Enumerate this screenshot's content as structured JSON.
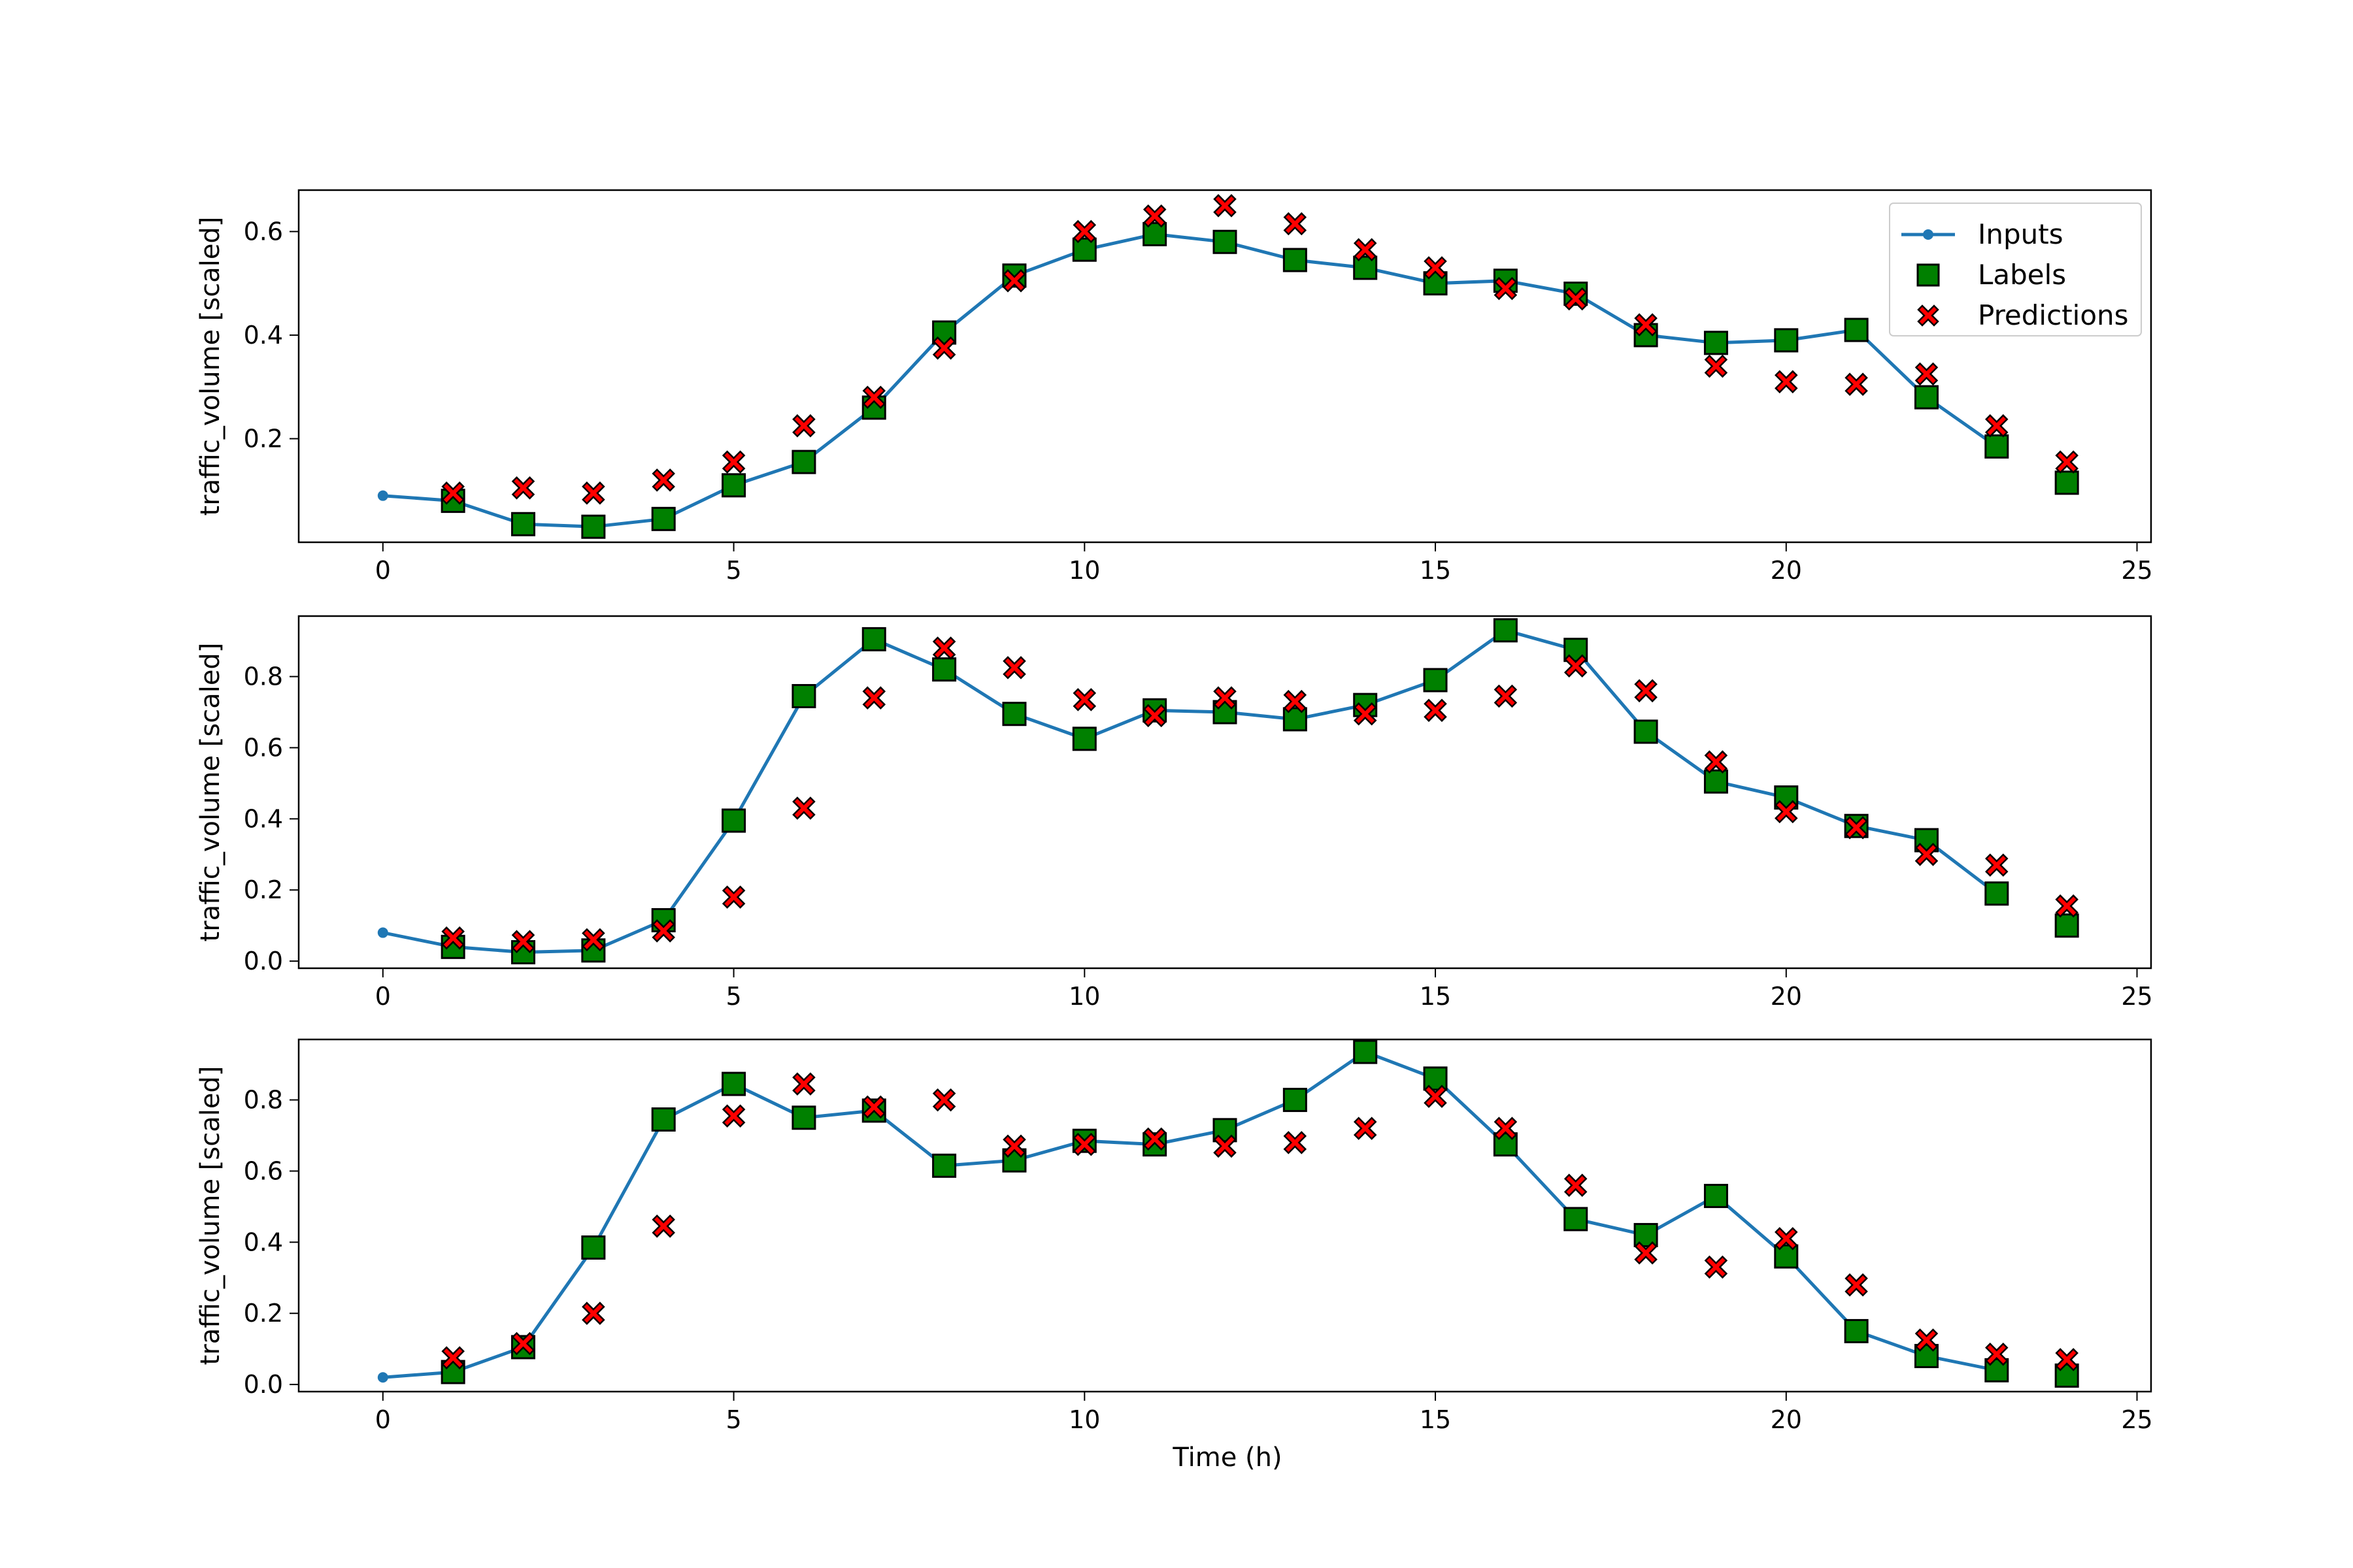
{
  "figure": {
    "xlabel": "Time (h)",
    "ylabel": "traffic_volume [scaled]"
  },
  "legend": {
    "placement": "top-right",
    "entries": [
      {
        "key": "inputs",
        "label": "Inputs"
      },
      {
        "key": "labels",
        "label": "Labels"
      },
      {
        "key": "predictions",
        "label": "Predictions"
      }
    ]
  },
  "colors": {
    "inputs": "#1f77b4",
    "labels": "#008000",
    "predictions": "#ff0000",
    "edge": "#000000"
  },
  "chart_data": [
    {
      "type": "line",
      "xlabel": "",
      "ylabel": "traffic_volume [scaled]",
      "xlim": [
        -1.2,
        25.2
      ],
      "ylim": [
        0.0,
        0.68
      ],
      "xticks": [
        0,
        5,
        10,
        15,
        20,
        25
      ],
      "yticks": [
        0.2,
        0.4,
        0.6
      ],
      "tick_decimals": 1,
      "legend": true,
      "series": [
        {
          "name": "Inputs",
          "kind": "line",
          "x": [
            0,
            1,
            2,
            3,
            4,
            5,
            6,
            7,
            8,
            9,
            10,
            11,
            12,
            13,
            14,
            15,
            16,
            17,
            18,
            19,
            20,
            21,
            22,
            23
          ],
          "y": [
            0.09,
            0.08,
            0.035,
            0.03,
            0.045,
            0.11,
            0.155,
            0.26,
            0.405,
            0.515,
            0.565,
            0.595,
            0.58,
            0.545,
            0.53,
            0.5,
            0.505,
            0.48,
            0.4,
            0.385,
            0.39,
            0.41,
            0.28,
            0.185
          ]
        },
        {
          "name": "Labels",
          "kind": "square",
          "x": [
            1,
            2,
            3,
            4,
            5,
            6,
            7,
            8,
            9,
            10,
            11,
            12,
            13,
            14,
            15,
            16,
            17,
            18,
            19,
            20,
            21,
            22,
            23,
            24
          ],
          "y": [
            0.08,
            0.035,
            0.03,
            0.045,
            0.11,
            0.155,
            0.26,
            0.405,
            0.515,
            0.565,
            0.595,
            0.58,
            0.545,
            0.53,
            0.5,
            0.505,
            0.48,
            0.4,
            0.385,
            0.39,
            0.41,
            0.28,
            0.185,
            0.115
          ]
        },
        {
          "name": "Predictions",
          "kind": "cross",
          "x": [
            1,
            2,
            3,
            4,
            5,
            6,
            7,
            8,
            9,
            10,
            11,
            12,
            13,
            14,
            15,
            16,
            17,
            18,
            19,
            20,
            21,
            22,
            23,
            24
          ],
          "y": [
            0.095,
            0.105,
            0.095,
            0.12,
            0.155,
            0.225,
            0.28,
            0.375,
            0.505,
            0.6,
            0.63,
            0.65,
            0.615,
            0.565,
            0.53,
            0.49,
            0.47,
            0.42,
            0.34,
            0.31,
            0.305,
            0.325,
            0.225,
            0.155
          ]
        }
      ]
    },
    {
      "type": "line",
      "xlabel": "",
      "ylabel": "traffic_volume [scaled]",
      "xlim": [
        -1.2,
        25.2
      ],
      "ylim": [
        -0.02,
        0.97
      ],
      "xticks": [
        0,
        5,
        10,
        15,
        20,
        25
      ],
      "yticks": [
        0.0,
        0.2,
        0.4,
        0.6,
        0.8
      ],
      "tick_decimals": 1,
      "legend": false,
      "series": [
        {
          "name": "Inputs",
          "kind": "line",
          "x": [
            0,
            1,
            2,
            3,
            4,
            5,
            6,
            7,
            8,
            9,
            10,
            11,
            12,
            13,
            14,
            15,
            16,
            17,
            18,
            19,
            20,
            21,
            22,
            23
          ],
          "y": [
            0.08,
            0.04,
            0.025,
            0.03,
            0.115,
            0.395,
            0.745,
            0.905,
            0.82,
            0.695,
            0.625,
            0.705,
            0.7,
            0.68,
            0.72,
            0.79,
            0.93,
            0.875,
            0.645,
            0.505,
            0.46,
            0.38,
            0.34,
            0.19
          ]
        },
        {
          "name": "Labels",
          "kind": "square",
          "x": [
            1,
            2,
            3,
            4,
            5,
            6,
            7,
            8,
            9,
            10,
            11,
            12,
            13,
            14,
            15,
            16,
            17,
            18,
            19,
            20,
            21,
            22,
            23,
            24
          ],
          "y": [
            0.04,
            0.025,
            0.03,
            0.115,
            0.395,
            0.745,
            0.905,
            0.82,
            0.695,
            0.625,
            0.705,
            0.7,
            0.68,
            0.72,
            0.79,
            0.93,
            0.875,
            0.645,
            0.505,
            0.46,
            0.38,
            0.34,
            0.19,
            0.1
          ]
        },
        {
          "name": "Predictions",
          "kind": "cross",
          "x": [
            1,
            2,
            3,
            4,
            5,
            6,
            7,
            8,
            9,
            10,
            11,
            12,
            13,
            14,
            15,
            16,
            17,
            18,
            19,
            20,
            21,
            22,
            23,
            24
          ],
          "y": [
            0.065,
            0.055,
            0.06,
            0.085,
            0.18,
            0.43,
            0.74,
            0.88,
            0.825,
            0.735,
            0.69,
            0.74,
            0.73,
            0.695,
            0.705,
            0.745,
            0.83,
            0.76,
            0.56,
            0.42,
            0.375,
            0.3,
            0.27,
            0.155
          ]
        }
      ]
    },
    {
      "type": "line",
      "xlabel": "Time (h)",
      "ylabel": "traffic_volume [scaled]",
      "xlim": [
        -1.2,
        25.2
      ],
      "ylim": [
        -0.02,
        0.97
      ],
      "xticks": [
        0,
        5,
        10,
        15,
        20,
        25
      ],
      "yticks": [
        0.0,
        0.2,
        0.4,
        0.6,
        0.8
      ],
      "tick_decimals": 1,
      "legend": false,
      "series": [
        {
          "name": "Inputs",
          "kind": "line",
          "x": [
            0,
            1,
            2,
            3,
            4,
            5,
            6,
            7,
            8,
            9,
            10,
            11,
            12,
            13,
            14,
            15,
            16,
            17,
            18,
            19,
            20,
            21,
            22,
            23
          ],
          "y": [
            0.02,
            0.035,
            0.105,
            0.385,
            0.745,
            0.845,
            0.75,
            0.77,
            0.615,
            0.63,
            0.685,
            0.675,
            0.715,
            0.8,
            0.935,
            0.86,
            0.675,
            0.465,
            0.42,
            0.53,
            0.36,
            0.15,
            0.08,
            0.04
          ]
        },
        {
          "name": "Labels",
          "kind": "square",
          "x": [
            1,
            2,
            3,
            4,
            5,
            6,
            7,
            8,
            9,
            10,
            11,
            12,
            13,
            14,
            15,
            16,
            17,
            18,
            19,
            20,
            21,
            22,
            23,
            24
          ],
          "y": [
            0.035,
            0.105,
            0.385,
            0.745,
            0.845,
            0.75,
            0.77,
            0.615,
            0.63,
            0.685,
            0.675,
            0.715,
            0.8,
            0.935,
            0.86,
            0.675,
            0.465,
            0.42,
            0.53,
            0.36,
            0.15,
            0.08,
            0.04,
            0.025
          ]
        },
        {
          "name": "Predictions",
          "kind": "cross",
          "x": [
            1,
            2,
            3,
            4,
            5,
            6,
            7,
            8,
            9,
            10,
            11,
            12,
            13,
            14,
            15,
            16,
            17,
            18,
            19,
            20,
            21,
            22,
            23,
            24
          ],
          "y": [
            0.075,
            0.115,
            0.2,
            0.445,
            0.755,
            0.845,
            0.78,
            0.8,
            0.67,
            0.675,
            0.69,
            0.67,
            0.68,
            0.72,
            0.81,
            0.72,
            0.56,
            0.37,
            0.33,
            0.41,
            0.28,
            0.125,
            0.085,
            0.07
          ]
        }
      ]
    }
  ]
}
